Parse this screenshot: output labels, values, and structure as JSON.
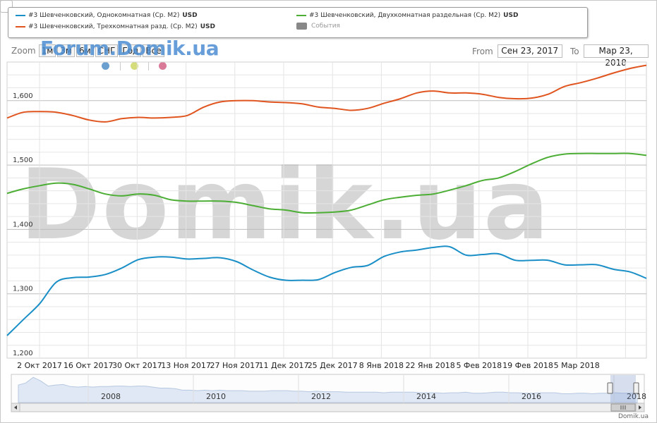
{
  "legend": {
    "items": [
      {
        "label": "#3 Шевченковский, Однокомнатная (Ср. M2)",
        "unit": "USD",
        "color": "#1a8fc7"
      },
      {
        "label": "#3 Шевченковский, Двухкомнатная раздельная (Ср. M2)",
        "unit": "USD",
        "color": "#4cae35"
      },
      {
        "label": "#3 Шевченковский, Трехкомнатная разд. (Ср. M2)",
        "unit": "USD",
        "color": "#e0551f"
      },
      {
        "label": "События",
        "unit": "",
        "color": "#888888"
      }
    ]
  },
  "watermarks": {
    "forum": "Forum.Domik.ua",
    "big": "Domik.ua",
    "footer": "Domik.ua"
  },
  "zoom": {
    "label": "Zoom",
    "buttons": [
      "1м",
      "3м",
      "6м",
      "СНГ",
      "Год",
      "Все"
    ]
  },
  "range": {
    "from_label": "From",
    "from_value": "Сен 23, 2017",
    "to_label": "To",
    "to_value": "Мар 23, 2018"
  },
  "event_dots": [
    "#6a9fd0",
    "#d4dc7c",
    "#d87a98"
  ],
  "chart_data": {
    "type": "line",
    "ylim": [
      1200,
      1660
    ],
    "y_ticks": [
      "1,200",
      "1,300",
      "1,400",
      "1,500",
      "1,600"
    ],
    "x_ticks": [
      "2 Окт 2017",
      "16 Окт 2017",
      "30 Окт 2017",
      "13 Ноя 2017",
      "27 Ноя 2017",
      "11 Дек 2017",
      "25 Дек 2017",
      "8 Янв 2018",
      "22 Янв 2018",
      "5 Фев 2018",
      "19 Фев 2018",
      "5 Мар 2018"
    ],
    "x": [
      "Сен 23",
      "Сен 28",
      "Окт 2",
      "Окт 7",
      "Окт 12",
      "Окт 16",
      "Окт 21",
      "Окт 26",
      "Окт 30",
      "Ноя 4",
      "Ноя 9",
      "Ноя 13",
      "Ноя 18",
      "Ноя 23",
      "Ноя 27",
      "Дек 2",
      "Дек 7",
      "Дек 11",
      "Дек 16",
      "Дек 21",
      "Дек 25",
      "Дек 30",
      "Янв 4",
      "Янв 8",
      "Янв 13",
      "Янв 18",
      "Янв 22",
      "Янв 27",
      "Фев 1",
      "Фев 5",
      "Фев 10",
      "Фев 15",
      "Фев 19",
      "Фев 24",
      "Мар 1",
      "Мар 5",
      "Мар 10",
      "Мар 15",
      "Мар 19",
      "Мар 23"
    ],
    "series": [
      {
        "name": "#3 Шевченковский, Однокомнатная (Ср. M2)",
        "color": "#1a8fc7",
        "values": [
          1235,
          1260,
          1285,
          1318,
          1325,
          1326,
          1330,
          1340,
          1353,
          1357,
          1357,
          1354,
          1355,
          1356,
          1350,
          1337,
          1326,
          1321,
          1321,
          1322,
          1333,
          1341,
          1344,
          1358,
          1365,
          1368,
          1372,
          1373,
          1360,
          1361,
          1362,
          1352,
          1352,
          1352,
          1345,
          1345,
          1345,
          1338,
          1334,
          1324
        ]
      },
      {
        "name": "#3 Шевченковский, Двухкомнатная раздельная (Ср. M2)",
        "color": "#4cae35",
        "values": [
          1456,
          1463,
          1468,
          1472,
          1470,
          1463,
          1455,
          1452,
          1455,
          1453,
          1446,
          1444,
          1444,
          1444,
          1442,
          1437,
          1432,
          1430,
          1426,
          1426,
          1427,
          1430,
          1438,
          1446,
          1450,
          1453,
          1455,
          1461,
          1468,
          1476,
          1480,
          1490,
          1502,
          1512,
          1517,
          1518,
          1518,
          1518,
          1518,
          1515
        ]
      },
      {
        "name": "#3 Шевченковский, Трехкомнатная разд. (Ср. M2)",
        "color": "#e0551f",
        "values": [
          1573,
          1582,
          1583,
          1582,
          1577,
          1570,
          1567,
          1572,
          1574,
          1573,
          1574,
          1577,
          1590,
          1598,
          1600,
          1600,
          1598,
          1597,
          1595,
          1590,
          1588,
          1585,
          1588,
          1596,
          1603,
          1612,
          1615,
          1612,
          1612,
          1610,
          1605,
          1603,
          1604,
          1610,
          1622,
          1628,
          1635,
          1643,
          1650,
          1655
        ]
      }
    ]
  },
  "navigator": {
    "year_labels": [
      "2008",
      "2010",
      "2012",
      "2014",
      "2016",
      "2018"
    ],
    "values": [
      30,
      34,
      45,
      38,
      28,
      30,
      31,
      27,
      26,
      27,
      26,
      27,
      27,
      28,
      28,
      27,
      28,
      28,
      26,
      24,
      24,
      23,
      20,
      20,
      19,
      20,
      19,
      20,
      19,
      19,
      19,
      18,
      18,
      18,
      19,
      19,
      19,
      18,
      18,
      17,
      18,
      17,
      17,
      17,
      16,
      16,
      16,
      16,
      16,
      15,
      16,
      16,
      16,
      16,
      15,
      15,
      15,
      14,
      15,
      15,
      16,
      14,
      14,
      15,
      16,
      16,
      15,
      15,
      14,
      14,
      15,
      15,
      15,
      13,
      13,
      14,
      14,
      13,
      14,
      14,
      15,
      14,
      14,
      14
    ]
  }
}
